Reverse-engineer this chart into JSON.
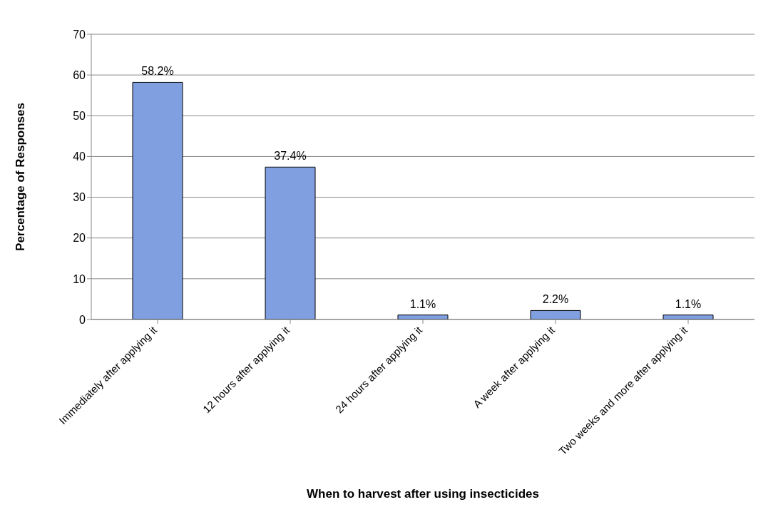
{
  "chart_data": {
    "type": "bar",
    "xlabel": "When to harvest after using insecticides",
    "ylabel": "Percentage of Responses",
    "categories": [
      "Immediately after applying it",
      "12 hours after applying it",
      "24 hours after applying it",
      "A week after applying it",
      "Two weeks and more after applying it"
    ],
    "values": [
      58.2,
      37.4,
      1.1,
      2.2,
      1.1
    ],
    "value_labels": [
      "58.2%",
      "37.4%",
      "1.1%",
      "2.2%",
      "1.1%"
    ],
    "color": "#7f9fe0",
    "ylim": [
      0,
      70
    ],
    "yticks": [
      0,
      10,
      20,
      30,
      40,
      50,
      60,
      70
    ],
    "grid": "y"
  }
}
